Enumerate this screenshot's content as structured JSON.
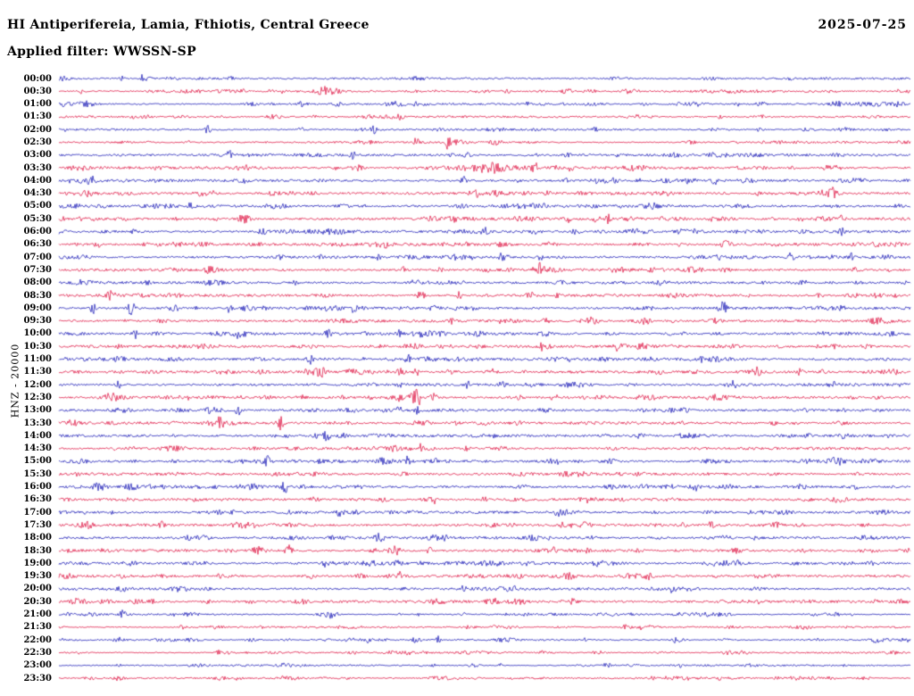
{
  "header": {
    "title": "HI Antiperifereia, Lamia, Fthiotis, Central Greece",
    "date": "2025-07-25",
    "filter_label": "Applied filter: WWSSN-SP"
  },
  "y_axis_label": "HNZ - 20000",
  "chart_data": {
    "type": "line",
    "kind": "helicorder-seismogram-24h",
    "station_region": "HI Antiperifereia, Lamia, Fthiotis, Central Greece",
    "channel": "HNZ",
    "gain": "20000",
    "date": "2025-07-25",
    "applied_filter": "WWSSN-SP",
    "minutes_per_row": 30,
    "legend_position": "none",
    "grid": false,
    "trace_colors": {
      "even": "#1515b4",
      "odd": "#dd1140"
    },
    "rows": [
      "00:00",
      "00:30",
      "01:00",
      "01:30",
      "02:00",
      "02:30",
      "03:00",
      "03:30",
      "04:00",
      "04:30",
      "05:00",
      "05:30",
      "06:00",
      "06:30",
      "07:00",
      "07:30",
      "08:00",
      "08:30",
      "09:00",
      "09:30",
      "10:00",
      "10:30",
      "11:00",
      "11:30",
      "12:00",
      "12:30",
      "13:00",
      "13:30",
      "14:00",
      "14:30",
      "15:00",
      "15:30",
      "16:00",
      "16:30",
      "17:00",
      "17:30",
      "18:00",
      "18:30",
      "19:00",
      "19:30",
      "20:00",
      "20:30",
      "21:00",
      "21:30",
      "22:00",
      "22:30",
      "23:00",
      "23:30"
    ],
    "events": [
      {
        "row": 0,
        "x": 0.86,
        "amp": 2,
        "w": 3
      },
      {
        "row": 1,
        "x": 0.6,
        "amp": 1.5,
        "w": 3
      },
      {
        "row": 2,
        "x": 0.55,
        "amp": 2,
        "w": 3
      },
      {
        "row": 3,
        "x": 0.3,
        "amp": 2,
        "w": 3
      },
      {
        "row": 3,
        "x": 0.68,
        "amp": 2.5,
        "w": 3
      },
      {
        "row": 4,
        "x": 0.175,
        "amp": 5,
        "w": 3
      },
      {
        "row": 4,
        "x": 0.37,
        "amp": 4,
        "w": 3
      },
      {
        "row": 4,
        "x": 0.63,
        "amp": 2,
        "w": 3
      },
      {
        "row": 5,
        "x": 0.42,
        "amp": 5,
        "w": 3
      },
      {
        "row": 5,
        "x": 0.455,
        "amp": 6,
        "w": 3
      },
      {
        "row": 5,
        "x": 0.52,
        "amp": 2.5,
        "w": 4
      },
      {
        "row": 6,
        "x": 0.2,
        "amp": 5,
        "w": 3
      },
      {
        "row": 6,
        "x": 0.345,
        "amp": 5,
        "w": 3
      },
      {
        "row": 6,
        "x": 0.48,
        "amp": 2.5,
        "w": 5
      },
      {
        "row": 7,
        "x": 0.5,
        "amp": 3,
        "w": 40
      },
      {
        "row": 7,
        "x": 0.5,
        "amp": 5,
        "w": 4
      },
      {
        "row": 7,
        "x": 0.56,
        "amp": 4,
        "w": 3
      },
      {
        "row": 7,
        "x": 0.6,
        "amp": 4,
        "w": 3
      },
      {
        "row": 7,
        "x": 0.35,
        "amp": 3,
        "w": 6
      },
      {
        "row": 8,
        "x": 0.035,
        "amp": 5,
        "w": 10
      },
      {
        "row": 8,
        "x": 0.475,
        "amp": 6,
        "w": 3
      },
      {
        "row": 8,
        "x": 0.77,
        "amp": 4,
        "w": 3
      },
      {
        "row": 8,
        "x": 0.63,
        "amp": 2,
        "w": 4
      },
      {
        "row": 9,
        "x": 0.575,
        "amp": 4,
        "w": 3
      },
      {
        "row": 9,
        "x": 0.91,
        "amp": 6,
        "w": 4
      },
      {
        "row": 10,
        "x": 0.155,
        "amp": 4,
        "w": 3
      },
      {
        "row": 10,
        "x": 0.55,
        "amp": 2,
        "w": 20
      },
      {
        "row": 11,
        "x": 0.465,
        "amp": 3,
        "w": 3
      },
      {
        "row": 11,
        "x": 0.6,
        "amp": 4,
        "w": 3
      },
      {
        "row": 11,
        "x": 0.645,
        "amp": 5,
        "w": 3
      },
      {
        "row": 11,
        "x": 0.92,
        "amp": 4,
        "w": 3
      },
      {
        "row": 12,
        "x": 0.5,
        "amp": 4,
        "w": 4
      },
      {
        "row": 12,
        "x": 0.92,
        "amp": 5,
        "w": 3
      },
      {
        "row": 12,
        "x": 0.3,
        "amp": 2,
        "w": 10
      },
      {
        "row": 13,
        "x": 0.045,
        "amp": 4,
        "w": 3
      },
      {
        "row": 13,
        "x": 0.52,
        "amp": 2.5,
        "w": 8
      },
      {
        "row": 14,
        "x": 0.26,
        "amp": 4,
        "w": 3
      },
      {
        "row": 14,
        "x": 0.375,
        "amp": 3,
        "w": 3
      },
      {
        "row": 14,
        "x": 0.52,
        "amp": 4,
        "w": 3
      },
      {
        "row": 14,
        "x": 0.565,
        "amp": 4,
        "w": 3
      },
      {
        "row": 14,
        "x": 0.86,
        "amp": 5,
        "w": 3
      },
      {
        "row": 14,
        "x": 0.93,
        "amp": 4,
        "w": 3
      },
      {
        "row": 15,
        "x": 0.405,
        "amp": 4,
        "w": 3
      },
      {
        "row": 15,
        "x": 0.565,
        "amp": 5,
        "w": 3
      },
      {
        "row": 16,
        "x": 0.875,
        "amp": 3,
        "w": 3
      },
      {
        "row": 16,
        "x": 0.45,
        "amp": 2,
        "w": 15
      },
      {
        "row": 17,
        "x": 0.06,
        "amp": 4,
        "w": 3
      },
      {
        "row": 17,
        "x": 0.425,
        "amp": 7,
        "w": 4
      },
      {
        "row": 17,
        "x": 0.47,
        "amp": 4,
        "w": 3
      },
      {
        "row": 18,
        "x": 0.04,
        "amp": 6,
        "w": 3
      },
      {
        "row": 18,
        "x": 0.085,
        "amp": 7,
        "w": 4
      },
      {
        "row": 18,
        "x": 0.2,
        "amp": 5,
        "w": 3
      },
      {
        "row": 18,
        "x": 0.345,
        "amp": 4,
        "w": 3
      },
      {
        "row": 18,
        "x": 0.78,
        "amp": 4,
        "w": 3
      },
      {
        "row": 19,
        "x": 0.46,
        "amp": 4,
        "w": 3
      },
      {
        "row": 19,
        "x": 0.52,
        "amp": 3,
        "w": 3
      },
      {
        "row": 20,
        "x": 0.09,
        "amp": 5,
        "w": 3
      },
      {
        "row": 20,
        "x": 0.315,
        "amp": 6,
        "w": 4
      },
      {
        "row": 20,
        "x": 0.4,
        "amp": 4,
        "w": 3
      },
      {
        "row": 21,
        "x": 0.655,
        "amp": 5,
        "w": 3
      },
      {
        "row": 21,
        "x": 0.07,
        "amp": 3,
        "w": 3
      },
      {
        "row": 22,
        "x": 0.295,
        "amp": 6,
        "w": 4
      },
      {
        "row": 22,
        "x": 0.41,
        "amp": 4,
        "w": 3
      },
      {
        "row": 22,
        "x": 0.755,
        "amp": 5,
        "w": 3
      },
      {
        "row": 23,
        "x": 0.4,
        "amp": 5,
        "w": 3
      },
      {
        "row": 23,
        "x": 0.42,
        "amp": 4,
        "w": 3
      },
      {
        "row": 23,
        "x": 0.82,
        "amp": 6,
        "w": 4
      },
      {
        "row": 23,
        "x": 0.87,
        "amp": 4,
        "w": 3
      },
      {
        "row": 24,
        "x": 0.07,
        "amp": 4,
        "w": 3
      },
      {
        "row": 24,
        "x": 0.4,
        "amp": 4,
        "w": 3
      },
      {
        "row": 24,
        "x": 0.48,
        "amp": 4,
        "w": 3
      },
      {
        "row": 24,
        "x": 0.52,
        "amp": 3,
        "w": 3
      },
      {
        "row": 25,
        "x": 0.42,
        "amp": 8,
        "w": 5
      },
      {
        "row": 25,
        "x": 0.44,
        "amp": 7,
        "w": 4
      },
      {
        "row": 25,
        "x": 0.4,
        "amp": 5,
        "w": 3
      },
      {
        "row": 26,
        "x": 0.21,
        "amp": 6,
        "w": 3
      },
      {
        "row": 26,
        "x": 0.4,
        "amp": 5,
        "w": 3
      },
      {
        "row": 26,
        "x": 0.42,
        "amp": 4,
        "w": 3
      },
      {
        "row": 27,
        "x": 0.19,
        "amp": 6,
        "w": 3
      },
      {
        "row": 27,
        "x": 0.26,
        "amp": 7,
        "w": 4
      },
      {
        "row": 27,
        "x": 0.5,
        "amp": 4,
        "w": 3
      },
      {
        "row": 28,
        "x": 0.315,
        "amp": 6,
        "w": 4
      },
      {
        "row": 28,
        "x": 0.88,
        "amp": 4,
        "w": 3
      },
      {
        "row": 28,
        "x": 0.92,
        "amp": 3,
        "w": 3
      },
      {
        "row": 29,
        "x": 0.425,
        "amp": 5,
        "w": 3
      },
      {
        "row": 29,
        "x": 0.48,
        "amp": 4,
        "w": 3
      },
      {
        "row": 30,
        "x": 0.245,
        "amp": 6,
        "w": 4
      },
      {
        "row": 30,
        "x": 0.41,
        "amp": 4,
        "w": 3
      },
      {
        "row": 31,
        "x": 0.3,
        "amp": 2,
        "w": 4
      },
      {
        "row": 32,
        "x": 0.04,
        "amp": 4,
        "w": 3
      },
      {
        "row": 32,
        "x": 0.265,
        "amp": 5,
        "w": 4
      },
      {
        "row": 33,
        "x": 0.44,
        "amp": 4,
        "w": 3
      },
      {
        "row": 33,
        "x": 0.5,
        "amp": 3,
        "w": 3
      },
      {
        "row": 34,
        "x": 0.33,
        "amp": 5,
        "w": 4
      },
      {
        "row": 34,
        "x": 0.7,
        "amp": 3,
        "w": 3
      },
      {
        "row": 35,
        "x": 0.12,
        "amp": 4,
        "w": 3
      },
      {
        "row": 36,
        "x": 0.375,
        "amp": 5,
        "w": 4
      },
      {
        "row": 37,
        "x": 0.27,
        "amp": 6,
        "w": 4
      },
      {
        "row": 37,
        "x": 0.435,
        "amp": 4,
        "w": 3
      },
      {
        "row": 38,
        "x": 0.55,
        "amp": 2,
        "w": 6
      },
      {
        "row": 39,
        "x": 0.19,
        "amp": 4,
        "w": 3
      },
      {
        "row": 39,
        "x": 0.4,
        "amp": 4,
        "w": 3
      },
      {
        "row": 40,
        "x": 0.72,
        "amp": 5,
        "w": 4
      },
      {
        "row": 40,
        "x": 0.475,
        "amp": 3,
        "w": 3
      },
      {
        "row": 42,
        "x": 0.075,
        "amp": 4,
        "w": 3
      },
      {
        "row": 44,
        "x": 0.445,
        "amp": 4,
        "w": 3
      },
      {
        "row": 46,
        "x": 0.44,
        "amp": 3,
        "w": 3
      },
      {
        "row": 46,
        "x": 0.73,
        "amp": 3,
        "w": 3
      }
    ]
  }
}
